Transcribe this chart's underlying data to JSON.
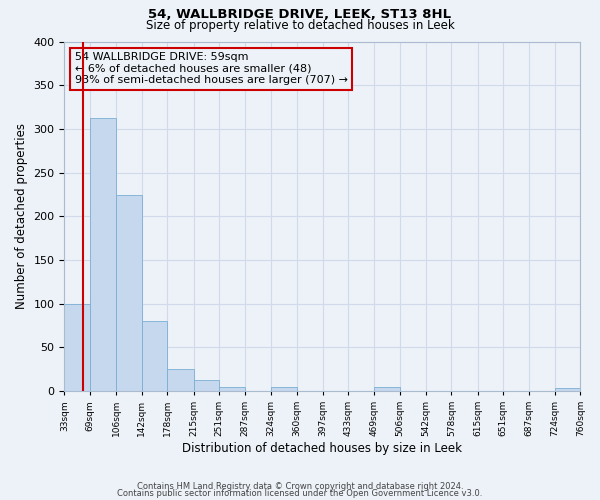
{
  "title1": "54, WALLBRIDGE DRIVE, LEEK, ST13 8HL",
  "title2": "Size of property relative to detached houses in Leek",
  "xlabel": "Distribution of detached houses by size in Leek",
  "ylabel": "Number of detached properties",
  "bar_color": "#c5d8ed",
  "bar_edge_color": "#7aafd4",
  "bins": [
    33,
    69,
    106,
    142,
    178,
    215,
    251,
    287,
    324,
    360,
    397,
    433,
    469,
    506,
    542,
    578,
    615,
    651,
    687,
    724,
    760
  ],
  "bar_heights": [
    100,
    313,
    224,
    80,
    25,
    13,
    5,
    0,
    5,
    0,
    0,
    0,
    5,
    0,
    0,
    0,
    0,
    0,
    0,
    4
  ],
  "property_size": 59,
  "vline_color": "#cc0000",
  "annotation_line1": "54 WALLBRIDGE DRIVE: 59sqm",
  "annotation_line2": "← 6% of detached houses are smaller (48)",
  "annotation_line3": "93% of semi-detached houses are larger (707) →",
  "annotation_box_color": "#cc0000",
  "ylim": [
    0,
    400
  ],
  "yticks": [
    0,
    50,
    100,
    150,
    200,
    250,
    300,
    350,
    400
  ],
  "footer1": "Contains HM Land Registry data © Crown copyright and database right 2024.",
  "footer2": "Contains public sector information licensed under the Open Government Licence v3.0.",
  "grid_color": "#d0daea",
  "background_color": "#edf2f8"
}
